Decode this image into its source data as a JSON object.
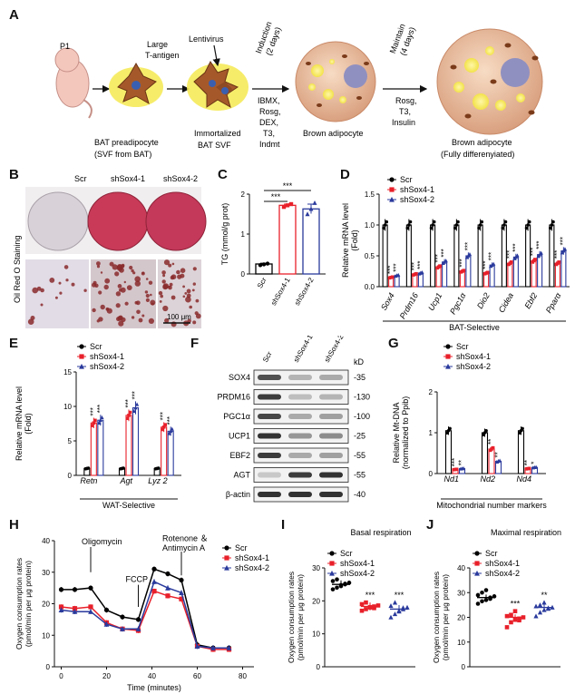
{
  "panel_letters": {
    "a": "A",
    "b": "B",
    "c": "C",
    "d": "D",
    "e": "E",
    "f": "F",
    "g": "G",
    "h": "H",
    "i": "I",
    "j": "J"
  },
  "schematic": {
    "p1": "P1",
    "large_t": [
      "Large",
      "T-antigen"
    ],
    "lentivirus": "Lentivirus",
    "induction": [
      "Induction",
      "(2 days)"
    ],
    "induction_agents": [
      "IBMX,",
      "Rosg,",
      "DEX,",
      "T3,",
      "Indmt"
    ],
    "maintain": [
      "Maintain",
      "(4 days)"
    ],
    "maintain_agents": [
      "Rosg,",
      "T3,",
      "Insulin"
    ],
    "cell1": [
      "BAT preadipocyte",
      "(SVF from BAT)"
    ],
    "cell2": [
      "Immortalized",
      "BAT SVF"
    ],
    "cell3": [
      "Brown adipocyte"
    ],
    "cell4": [
      "Brown adipocyte",
      "(Fully differenyiated)"
    ]
  },
  "panel_b": {
    "conditions": [
      "Scr",
      "shSox4-1",
      "shSox4-2"
    ],
    "stain_label": "Oil Red O Staining",
    "scalebar": "100 μm",
    "colors": {
      "dish_scr": "#d8d2d8",
      "dish_sh": "#c83a58",
      "micro_bg": "#e2dce6",
      "droplet": "#8a2a2c"
    }
  },
  "chart_data": [
    {
      "id": "C",
      "type": "bar",
      "ylabel": "TG (mmol/g prot)",
      "categories": [
        "Scr",
        "shSox4-1",
        "shSox4-2"
      ],
      "values": [
        0.25,
        1.72,
        1.63
      ],
      "errors": [
        0.02,
        0.03,
        0.12
      ],
      "points": [
        [
          0.22,
          0.24,
          0.26
        ],
        [
          1.68,
          1.72,
          1.75
        ],
        [
          1.5,
          1.63,
          1.78
        ]
      ],
      "ylim": [
        0,
        2
      ],
      "yticks": [
        "0",
        "1",
        "2"
      ],
      "significance": [
        {
          "label": "***",
          "from": 0,
          "to": 1
        },
        {
          "label": "***",
          "from": 0,
          "to": 2
        }
      ],
      "colors": [
        "#000000",
        "#e8202a",
        "#2a3a9c"
      ]
    },
    {
      "id": "D",
      "type": "bar",
      "ylabel": [
        "Relative mRNA level",
        "(Fold)"
      ],
      "categories": [
        "Sox4",
        "Prdm16",
        "Ucp1",
        "Pgc1α",
        "Dio2",
        "Cidea",
        "Ebf2",
        "Pparα"
      ],
      "series": [
        {
          "name": "Scr",
          "values": [
            1,
            1,
            1,
            1,
            1,
            1,
            1,
            1
          ]
        },
        {
          "name": "shSox4-1",
          "values": [
            0.15,
            0.2,
            0.32,
            0.25,
            0.22,
            0.38,
            0.42,
            0.38
          ]
        },
        {
          "name": "shSox4-2",
          "values": [
            0.18,
            0.22,
            0.4,
            0.5,
            0.35,
            0.48,
            0.52,
            0.58
          ]
        }
      ],
      "significance": [
        "***",
        "***",
        "***",
        "***",
        "***",
        "***",
        "***",
        "***"
      ],
      "ylim": [
        0,
        1.5
      ],
      "yticks": [
        "0.0",
        "0.5",
        "1.0",
        "1.5"
      ],
      "xlabel": "BAT-Selective"
    },
    {
      "id": "E",
      "type": "bar",
      "ylabel": [
        "Relative mRNA level",
        "(Fold)"
      ],
      "categories": [
        "Retn",
        "Agt",
        "Lyz 2"
      ],
      "series": [
        {
          "name": "Scr",
          "values": [
            1,
            1,
            1
          ]
        },
        {
          "name": "shSox4-1",
          "values": [
            7.6,
            8.7,
            7.0
          ]
        },
        {
          "name": "shSox4-2",
          "values": [
            8.0,
            9.8,
            6.4
          ]
        }
      ],
      "significance": [
        "***",
        "***",
        "***"
      ],
      "ylim": [
        0,
        15
      ],
      "yticks": [
        "0",
        "5",
        "10",
        "15"
      ],
      "xlabel": "WAT-Selective"
    },
    {
      "id": "G",
      "type": "bar",
      "ylabel": [
        "Relative Mt-DNA",
        "(normalized to Ppib)"
      ],
      "categories": [
        "Nd1",
        "Nd2",
        "Nd4"
      ],
      "series": [
        {
          "name": "Scr",
          "values": [
            1.05,
            1.0,
            1.05
          ]
        },
        {
          "name": "shSox4-1",
          "values": [
            0.1,
            0.6,
            0.12
          ]
        },
        {
          "name": "shSox4-2",
          "values": [
            0.12,
            0.3,
            0.15
          ]
        }
      ],
      "significance": [
        [
          "***",
          "**"
        ],
        [
          "**",
          "**"
        ],
        [
          "**",
          "*"
        ]
      ],
      "ylim": [
        0,
        2
      ],
      "yticks": [
        "0",
        "1",
        "2"
      ],
      "xlabel": "Mitochondrial number markers"
    },
    {
      "id": "H",
      "type": "line",
      "xlabel": "Time (minutes)",
      "ylabel": [
        "Oxygen consumption rates",
        "(pmol/min per μg protein)"
      ],
      "x": [
        0,
        6,
        13,
        20,
        27,
        34,
        41,
        47,
        53,
        60,
        67,
        74
      ],
      "series": [
        {
          "name": "Scr",
          "values": [
            24.5,
            24.5,
            25,
            18,
            15.8,
            15,
            31,
            29.5,
            27.5,
            7,
            6,
            6
          ]
        },
        {
          "name": "shSox4-1",
          "values": [
            19,
            18.5,
            19,
            14,
            12,
            11.5,
            24,
            22.5,
            21.5,
            6.5,
            5.5,
            5.5
          ]
        },
        {
          "name": "shSox4-2",
          "values": [
            18,
            17.5,
            17.5,
            13.5,
            12,
            12,
            27,
            25,
            23.5,
            6.5,
            6,
            6
          ]
        }
      ],
      "annotations": [
        "Oligomycin",
        "FCCP",
        "Rotenone ＆",
        "Antimycin A"
      ],
      "xlim": [
        -3,
        85
      ],
      "ylim": [
        0,
        40
      ],
      "yticks": [
        "0",
        "10",
        "20",
        "30",
        "40"
      ],
      "xticks": [
        "0",
        "20",
        "40",
        "60",
        "80"
      ]
    },
    {
      "id": "I",
      "type": "scatter",
      "title": "Basal respiration",
      "ylabel": [
        "Oxygen consumption rates",
        "(pmol/min per μg protein)"
      ],
      "categories": [
        "Scr",
        "shSox4-1",
        "shSox4-2"
      ],
      "values": [
        25,
        18.3,
        17.5
      ],
      "points": [
        [
          23.5,
          24,
          24.5,
          25,
          25.5,
          26,
          26.5,
          24.8,
          25.2
        ],
        [
          17,
          17.5,
          18,
          18.3,
          18.6,
          19,
          19.5,
          18.1,
          17.8
        ],
        [
          15,
          16,
          16.8,
          17.5,
          18,
          18.5,
          19.5,
          17,
          17.9
        ]
      ],
      "significance": [
        "",
        "***",
        "***"
      ],
      "ylim": [
        0,
        30
      ],
      "yticks": [
        "0",
        "10",
        "20",
        "30"
      ]
    },
    {
      "id": "J",
      "type": "scatter",
      "title": "Maximal respiration",
      "ylabel": [
        "Oxygen consumption rates",
        "(pmol/min per μg protein)"
      ],
      "categories": [
        "Scr",
        "shSox4-1",
        "shSox4-2"
      ],
      "values": [
        28,
        20,
        24
      ],
      "points": [
        [
          25.5,
          26.5,
          27,
          28,
          28.5,
          29,
          30,
          31,
          27.5
        ],
        [
          16,
          18,
          19,
          19.5,
          20,
          20.5,
          21,
          22.5,
          18.8
        ],
        [
          20.5,
          22,
          23,
          23.5,
          24,
          24.5,
          25,
          26,
          23.8
        ]
      ],
      "significance": [
        "",
        "***",
        "**"
      ],
      "ylim": [
        0,
        40
      ],
      "yticks": [
        "0",
        "10",
        "20",
        "30",
        "40"
      ]
    }
  ],
  "panel_f": {
    "lanes": [
      "Scr",
      "shSox4-1",
      "shSox4-2"
    ],
    "kd_label": "kD",
    "bands": [
      {
        "protein": "SOX4",
        "kd": "35",
        "intensity": [
          0.75,
          0.25,
          0.3
        ]
      },
      {
        "protein": "PRDM16",
        "kd": "130",
        "intensity": [
          0.85,
          0.2,
          0.25
        ]
      },
      {
        "protein": "PGC1α",
        "kd": "100",
        "intensity": [
          0.8,
          0.3,
          0.35
        ]
      },
      {
        "protein": "UCP1",
        "kd": "25",
        "intensity": [
          0.9,
          0.4,
          0.45
        ]
      },
      {
        "protein": "EBF2",
        "kd": "55",
        "intensity": [
          0.85,
          0.3,
          0.35
        ]
      },
      {
        "protein": "AGT",
        "kd": "55",
        "intensity": [
          0.15,
          0.85,
          0.9
        ]
      },
      {
        "protein": "β-actin",
        "kd": "40",
        "intensity": [
          0.9,
          0.9,
          0.9
        ]
      }
    ]
  },
  "legend_names": [
    "Scr",
    "shSox4-1",
    "shSox4-2"
  ],
  "colors": {
    "scr": "#000000",
    "sh1": "#e8202a",
    "sh2": "#2a3a9c"
  }
}
